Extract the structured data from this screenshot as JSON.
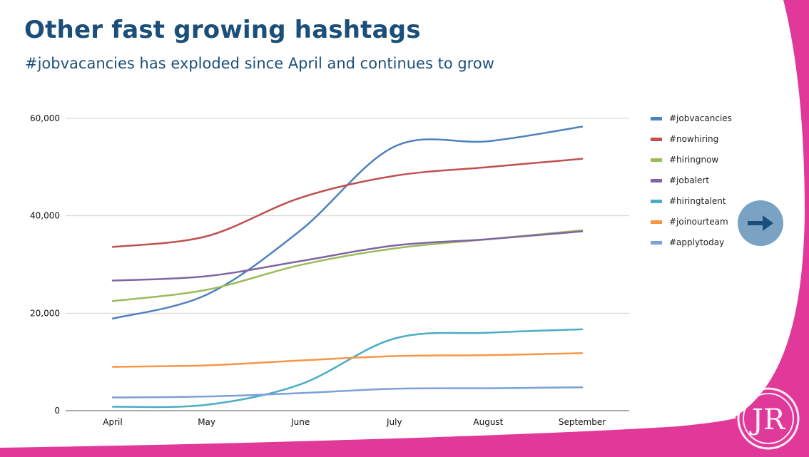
{
  "slide": {
    "title": "Other fast growing hashtags",
    "subtitle": "#jobvacancies has exploded since April and continues to grow"
  },
  "colors": {
    "accent": "#e0399a",
    "title": "#1b4f7a",
    "button": "#7aa3c3"
  },
  "icons": {
    "next": "arrow-right-icon",
    "logo": "jr-logo"
  },
  "logo_text": "JR",
  "chart_data": {
    "type": "line",
    "categories": [
      "April",
      "May",
      "June",
      "July",
      "August",
      "September"
    ],
    "ylim": [
      0,
      60000
    ],
    "yticks": [
      {
        "value": 0,
        "label": "0"
      },
      {
        "value": 20000,
        "label": "20,000"
      },
      {
        "value": 40000,
        "label": "40,000"
      },
      {
        "value": 60000,
        "label": "60,000"
      }
    ],
    "grid": true,
    "legend": "right",
    "smooth": true,
    "series": [
      {
        "name": "#jobvacancies",
        "color": "#4f81bd",
        "values": [
          18900,
          23800,
          37000,
          54200,
          55300,
          58300
        ]
      },
      {
        "name": "#nowhiring",
        "color": "#c0504d",
        "values": [
          33600,
          35800,
          43700,
          48200,
          50000,
          51700
        ]
      },
      {
        "name": "#hiringnow",
        "color": "#9bbb59",
        "values": [
          22500,
          24800,
          29900,
          33300,
          35200,
          37000
        ]
      },
      {
        "name": "#jobalert",
        "color": "#8064a2",
        "values": [
          26700,
          27600,
          30700,
          33900,
          35200,
          36800
        ]
      },
      {
        "name": "#hiringtalent",
        "color": "#4bacc6",
        "values": [
          800,
          1200,
          5400,
          14800,
          16000,
          16700
        ]
      },
      {
        "name": "#joinourteam",
        "color": "#f79646",
        "values": [
          9000,
          9300,
          10300,
          11200,
          11400,
          11800
        ]
      },
      {
        "name": "#applytoday",
        "color": "#7ba1d5",
        "values": [
          2700,
          2900,
          3600,
          4500,
          4600,
          4800
        ]
      }
    ]
  }
}
